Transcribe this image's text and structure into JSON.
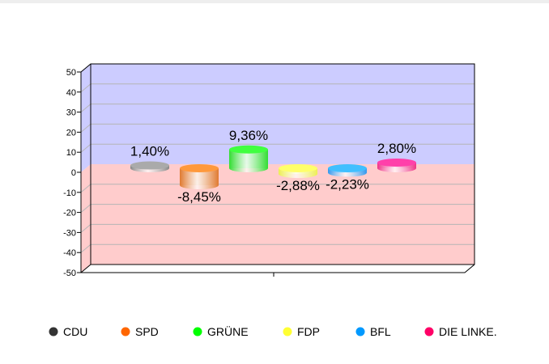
{
  "chart_data": {
    "type": "bar",
    "title": "",
    "xlabel": "",
    "ylabel": "",
    "ylim": [
      -50,
      50
    ],
    "yticks": [
      "50",
      "40",
      "30",
      "20",
      "10",
      "0",
      "-10",
      "-20",
      "-30",
      "-40",
      "-50"
    ],
    "grid": true,
    "legend_position": "bottom",
    "background_positive": "#ccccff",
    "background_negative": "#ffcccc",
    "series": [
      {
        "name": "CDU",
        "value": 1.4,
        "label": "1,40%",
        "color": "#333333",
        "bar_color": "#888888"
      },
      {
        "name": "SPD",
        "value": -8.45,
        "label": "-8,45%",
        "color": "#ff6600",
        "bar_color": "#e07a30"
      },
      {
        "name": "GRÜNE",
        "value": 9.36,
        "label": "9,36%",
        "color": "#00ff00",
        "bar_color": "#33dd33"
      },
      {
        "name": "FDP",
        "value": -2.88,
        "label": "-2,88%",
        "color": "#ffff33",
        "bar_color": "#eeee55"
      },
      {
        "name": "BFL",
        "value": -2.23,
        "label": "-2,23%",
        "color": "#0099ff",
        "bar_color": "#3399ee"
      },
      {
        "name": "DIE LINKE.",
        "value": 2.8,
        "label": "2,80%",
        "color": "#ff0066",
        "bar_color": "#ee3388"
      }
    ]
  }
}
